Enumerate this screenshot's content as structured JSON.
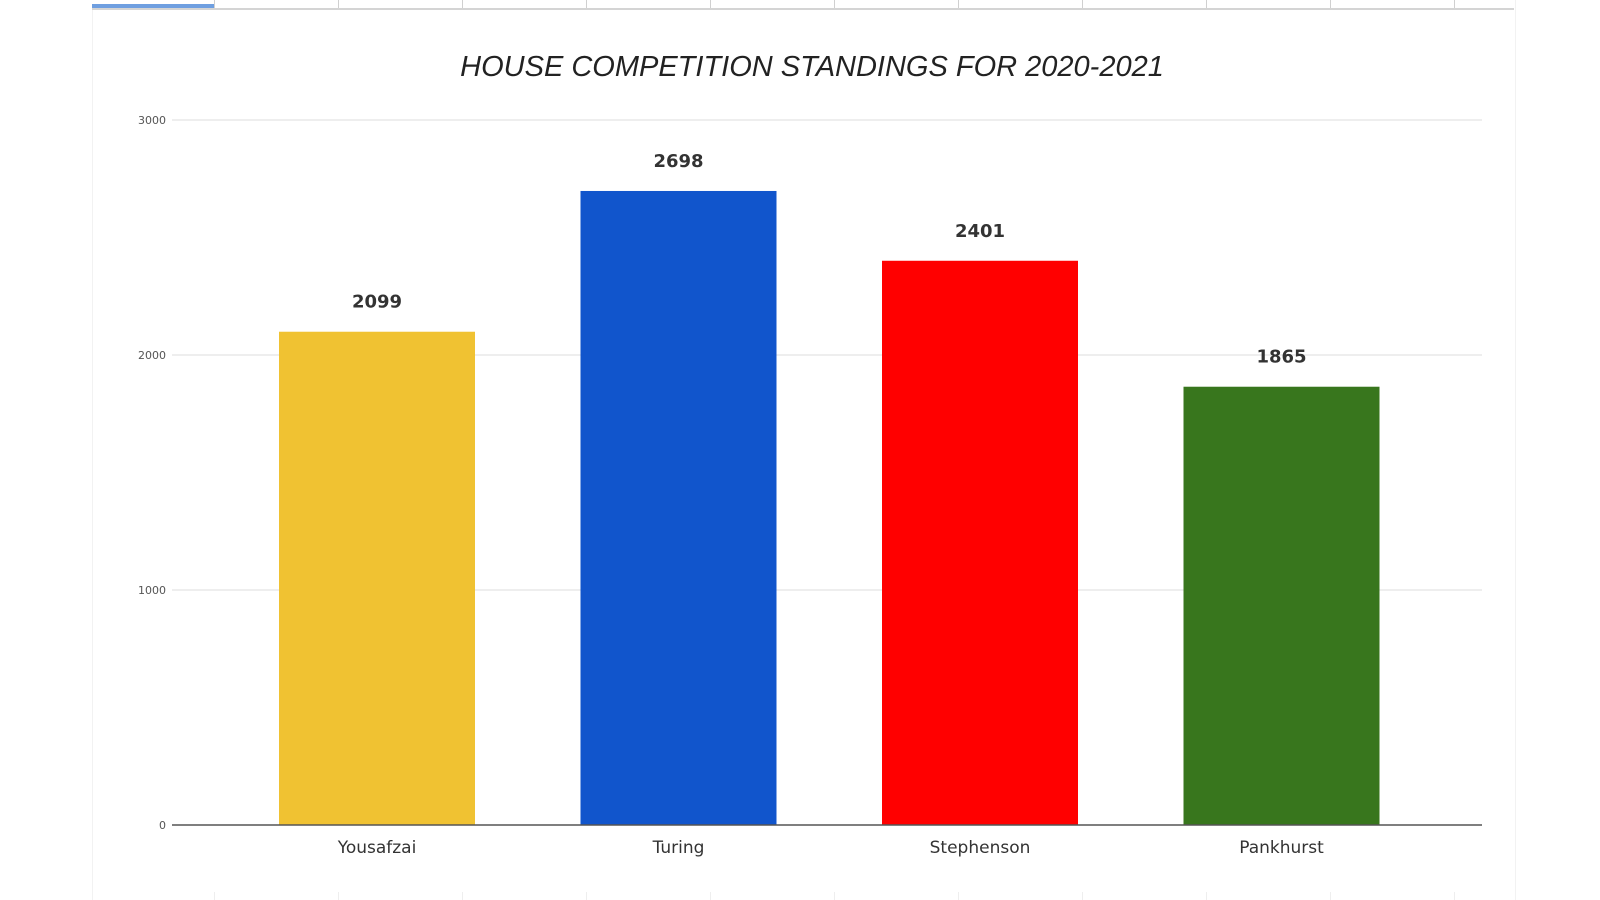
{
  "chart_data": {
    "type": "bar",
    "title": "HOUSE COMPETITION STANDINGS FOR 2020-2021",
    "xlabel": "",
    "ylabel": "",
    "categories": [
      "Yousafzai",
      "Turing",
      "Stephenson",
      "Pankhurst"
    ],
    "values": [
      2099,
      2698,
      2401,
      1865
    ],
    "colors": [
      "#f0c232",
      "#1155cc",
      "#ff0000",
      "#38761d"
    ],
    "ylim": [
      0,
      3000
    ],
    "yticks": [
      "0",
      "1000",
      "2000",
      "3000"
    ],
    "data_labels": [
      "2099",
      "2698",
      "2401",
      "1865"
    ],
    "grid": true,
    "legend": "none"
  }
}
